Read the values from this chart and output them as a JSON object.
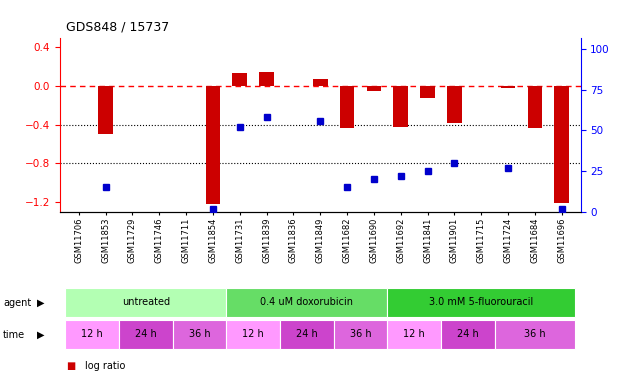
{
  "title": "GDS848 / 15737",
  "samples": [
    "GSM11706",
    "GSM11853",
    "GSM11729",
    "GSM11746",
    "GSM11711",
    "GSM11854",
    "GSM11731",
    "GSM11839",
    "GSM11836",
    "GSM11849",
    "GSM11682",
    "GSM11690",
    "GSM11692",
    "GSM11841",
    "GSM11901",
    "GSM11715",
    "GSM11724",
    "GSM11684",
    "GSM11696"
  ],
  "log_ratio": [
    0.0,
    -0.5,
    0.0,
    0.0,
    0.0,
    -1.22,
    0.13,
    0.14,
    0.0,
    0.07,
    -0.43,
    -0.05,
    -0.42,
    -0.12,
    -0.38,
    0.0,
    -0.02,
    -0.43,
    -1.21
  ],
  "percentile": [
    null,
    15,
    null,
    null,
    null,
    2,
    52,
    58,
    null,
    56,
    15,
    20,
    22,
    25,
    30,
    null,
    27,
    null,
    2
  ],
  "agent_groups": [
    {
      "label": "untreated",
      "start": 0,
      "end": 5,
      "color": "#b3ffb3"
    },
    {
      "label": "0.4 uM doxorubicin",
      "start": 6,
      "end": 11,
      "color": "#66dd66"
    },
    {
      "label": "3.0 mM 5-fluorouracil",
      "start": 12,
      "end": 18,
      "color": "#33cc33"
    }
  ],
  "time_groups": [
    {
      "label": "12 h",
      "start": 0,
      "end": 1,
      "color": "#ff99ff"
    },
    {
      "label": "24 h",
      "start": 2,
      "end": 3,
      "color": "#cc44cc"
    },
    {
      "label": "36 h",
      "start": 4,
      "end": 5,
      "color": "#dd66dd"
    },
    {
      "label": "12 h",
      "start": 6,
      "end": 7,
      "color": "#ff99ff"
    },
    {
      "label": "24 h",
      "start": 8,
      "end": 9,
      "color": "#cc44cc"
    },
    {
      "label": "36 h",
      "start": 10,
      "end": 11,
      "color": "#dd66dd"
    },
    {
      "label": "12 h",
      "start": 12,
      "end": 13,
      "color": "#ff99ff"
    },
    {
      "label": "24 h",
      "start": 14,
      "end": 15,
      "color": "#cc44cc"
    },
    {
      "label": "36 h",
      "start": 16,
      "end": 18,
      "color": "#dd66dd"
    }
  ],
  "bar_color": "#cc0000",
  "dot_color": "#0000cc",
  "ylim_left": [
    -1.3,
    0.5
  ],
  "ylim_right": [
    0,
    107
  ],
  "yticks_left": [
    0.4,
    0.0,
    -0.4,
    -0.8,
    -1.2
  ],
  "yticks_right": [
    100,
    75,
    50,
    25,
    0
  ],
  "hline_y": 0.0,
  "dotted_lines": [
    -0.4,
    -0.8
  ],
  "background_color": "#ffffff"
}
